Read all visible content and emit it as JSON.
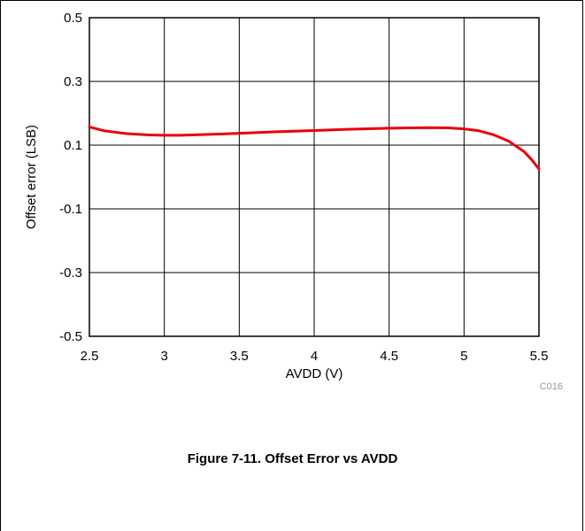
{
  "figure": {
    "caption": "Figure 7-11. Offset Error vs AVDD",
    "code": "C016"
  },
  "chart_data": {
    "type": "line",
    "xlabel": "AVDD (V)",
    "ylabel": "Offset error (LSB)",
    "xlim": [
      2.5,
      5.5
    ],
    "ylim": [
      -0.5,
      0.5
    ],
    "xticks": [
      "2.5",
      "3",
      "3.5",
      "4",
      "4.5",
      "5",
      "5.5"
    ],
    "yticks": [
      "0.5",
      "0.3",
      "0.1",
      "-0.1",
      "-0.3",
      "-0.5"
    ],
    "grid": true,
    "series": [
      {
        "color": "#e8000b",
        "x": [
          2.5,
          2.6,
          2.75,
          2.9,
          3.0,
          3.1,
          3.25,
          3.5,
          3.75,
          4.0,
          4.25,
          4.5,
          4.75,
          4.9,
          5.0,
          5.1,
          5.2,
          5.3,
          5.4,
          5.45,
          5.5
        ],
        "y": [
          0.157,
          0.145,
          0.136,
          0.132,
          0.131,
          0.131,
          0.133,
          0.137,
          0.142,
          0.146,
          0.15,
          0.153,
          0.155,
          0.154,
          0.151,
          0.145,
          0.132,
          0.112,
          0.08,
          0.055,
          0.025
        ]
      }
    ]
  }
}
